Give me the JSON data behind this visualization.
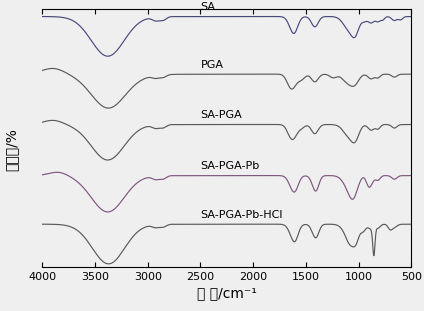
{
  "title": "",
  "xlabel": "波 数/cm⁻¹",
  "ylabel": "透过率/%",
  "xmin": 500,
  "xmax": 4000,
  "background": "#f0eff0",
  "labels": [
    "SA",
    "PGA",
    "SA-PGA",
    "SA-PGA-Pb",
    "SA-PGA-Pb-HCl"
  ],
  "offsets": [
    4.0,
    3.0,
    2.0,
    1.0,
    0.0
  ],
  "line_colors": [
    "#4a4a7a",
    "#5a5a5a",
    "#5a5a5a",
    "#7a5a7a",
    "#5a5a5a"
  ],
  "label_fontsize": 8,
  "axis_fontsize": 10,
  "tick_fontsize": 8
}
